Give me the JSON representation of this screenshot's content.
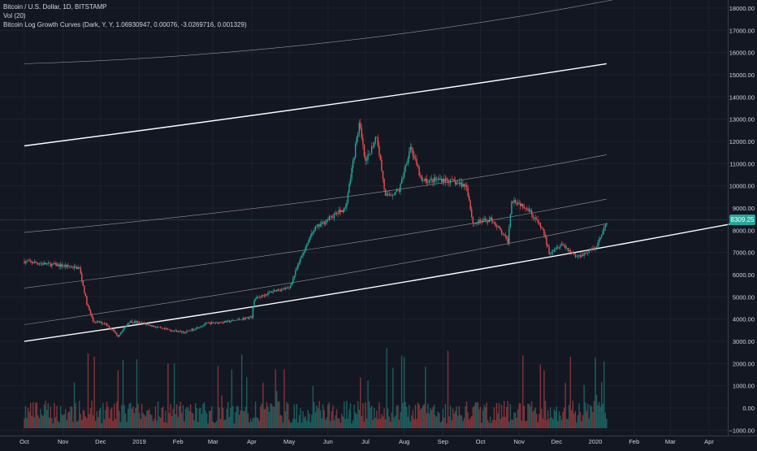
{
  "legend": {
    "symbol": "Bitcoin / U.S. Dollar, 1D, BITSTAMP",
    "volume": "Vol (20)",
    "indicator": "Bitcoin Log Growth Curves (Dark, Y, Y, 1.06930947, 0.00076, -3.0269716, 0.001329)"
  },
  "current_price": "8309.25",
  "colors": {
    "background": "#131722",
    "up": "#26a69a",
    "down": "#ef5350",
    "grid": "#1e222d",
    "axis_text": "#d1d4dc",
    "curve": "#ffffff"
  },
  "chart_data": {
    "type": "candlestick",
    "y_axis_ticks": [
      "18000.00",
      "17000.00",
      "16000.00",
      "15000.00",
      "14000.00",
      "13000.00",
      "12000.00",
      "11000.00",
      "10000.00",
      "9000.00",
      "8000.00",
      "7000.00",
      "6000.00",
      "5000.00",
      "4000.00",
      "3000.00",
      "2000.00",
      "1000.00",
      "0.00",
      "−1000.00"
    ],
    "x_axis_ticks": [
      "Oct",
      "Nov",
      "Dec",
      "2019",
      "Feb",
      "Mar",
      "Apr",
      "May",
      "Jun",
      "Jul",
      "Aug",
      "Sep",
      "Oct",
      "Nov",
      "Dec",
      "2020",
      "Feb",
      "Mar",
      "Apr"
    ],
    "price_path": [
      [
        "2018-10-01",
        6600
      ],
      [
        "2018-10-15",
        6500
      ],
      [
        "2018-11-01",
        6400
      ],
      [
        "2018-11-14",
        6300
      ],
      [
        "2018-11-20",
        4700
      ],
      [
        "2018-11-25",
        3900
      ],
      [
        "2018-12-05",
        3800
      ],
      [
        "2018-12-15",
        3250
      ],
      [
        "2018-12-24",
        3900
      ],
      [
        "2019-01-05",
        3800
      ],
      [
        "2019-01-20",
        3550
      ],
      [
        "2019-02-07",
        3400
      ],
      [
        "2019-02-24",
        3800
      ],
      [
        "2019-03-15",
        3900
      ],
      [
        "2019-04-01",
        4100
      ],
      [
        "2019-04-03",
        4900
      ],
      [
        "2019-04-20",
        5300
      ],
      [
        "2019-05-01",
        5400
      ],
      [
        "2019-05-12",
        7000
      ],
      [
        "2019-05-20",
        8000
      ],
      [
        "2019-06-01",
        8500
      ],
      [
        "2019-06-15",
        9000
      ],
      [
        "2019-06-26",
        12800
      ],
      [
        "2019-07-01",
        11000
      ],
      [
        "2019-07-10",
        12300
      ],
      [
        "2019-07-17",
        9500
      ],
      [
        "2019-07-28",
        9800
      ],
      [
        "2019-08-06",
        11800
      ],
      [
        "2019-08-15",
        10200
      ],
      [
        "2019-09-01",
        10300
      ],
      [
        "2019-09-20",
        10000
      ],
      [
        "2019-09-25",
        8300
      ],
      [
        "2019-10-10",
        8500
      ],
      [
        "2019-10-23",
        7500
      ],
      [
        "2019-10-26",
        9400
      ],
      [
        "2019-11-08",
        9000
      ],
      [
        "2019-11-20",
        8000
      ],
      [
        "2019-11-25",
        7000
      ],
      [
        "2019-12-05",
        7400
      ],
      [
        "2019-12-17",
        6800
      ],
      [
        "2020-01-01",
        7200
      ],
      [
        "2020-01-10",
        8300
      ]
    ],
    "log_growth_curves": [
      {
        "points": [
          [
            "2018-10-01",
            15500
          ],
          [
            "2019-07-20",
            16000
          ],
          [
            "2020-04-20",
            19500
          ]
        ]
      },
      {
        "points": [
          [
            "2018-10-01",
            11800
          ],
          [
            "2019-07-01",
            13800
          ],
          [
            "2020-01-10",
            15500
          ]
        ]
      },
      {
        "points": [
          [
            "2018-10-01",
            7900
          ],
          [
            "2019-07-01",
            9300
          ],
          [
            "2020-01-10",
            11400
          ]
        ]
      },
      {
        "points": [
          [
            "2018-10-01",
            5400
          ],
          [
            "2019-07-01",
            7300
          ],
          [
            "2020-01-10",
            9400
          ]
        ]
      },
      {
        "points": [
          [
            "2018-10-01",
            3750
          ],
          [
            "2019-07-01",
            6000
          ],
          [
            "2020-01-10",
            8300
          ]
        ]
      },
      {
        "points": [
          [
            "2018-10-01",
            3000
          ],
          [
            "2019-07-01",
            5200
          ],
          [
            "2020-04-20",
            8300
          ]
        ]
      }
    ]
  }
}
